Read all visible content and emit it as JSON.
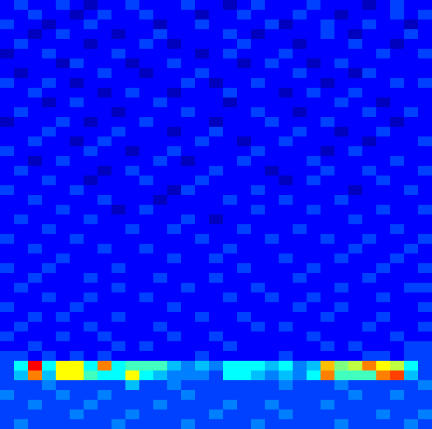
{
  "chart_data": {
    "type": "heatmap",
    "tick_labels": false,
    "zlim": [
      0,
      16
    ],
    "cells": [
      [
        2,
        3,
        2,
        2,
        3,
        2,
        1,
        2,
        2,
        3,
        2,
        2,
        2,
        3,
        2,
        2,
        1,
        2,
        3,
        2,
        2,
        2,
        3,
        2,
        2,
        2,
        1,
        2,
        3,
        2,
        2
      ],
      [
        2,
        2,
        3,
        2,
        2,
        1,
        2,
        3,
        2,
        2,
        3,
        2,
        2,
        2,
        1,
        2,
        2,
        3,
        2,
        2,
        2,
        3,
        2,
        2,
        1,
        2,
        2,
        2,
        3,
        2,
        3
      ],
      [
        3,
        2,
        2,
        1,
        2,
        2,
        3,
        2,
        2,
        2,
        2,
        1,
        2,
        2,
        3,
        2,
        2,
        2,
        2,
        3,
        1,
        2,
        2,
        3,
        2,
        2,
        3,
        2,
        2,
        1,
        2
      ],
      [
        2,
        2,
        1,
        2,
        3,
        2,
        2,
        2,
        1,
        2,
        2,
        3,
        2,
        2,
        2,
        2,
        3,
        2,
        1,
        2,
        2,
        2,
        2,
        3,
        2,
        1,
        2,
        2,
        2,
        3,
        2
      ],
      [
        2,
        3,
        2,
        2,
        2,
        2,
        1,
        2,
        2,
        2,
        3,
        2,
        1,
        2,
        2,
        2,
        2,
        3,
        2,
        2,
        2,
        1,
        2,
        2,
        2,
        3,
        2,
        2,
        1,
        2,
        2
      ],
      [
        1,
        2,
        2,
        3,
        2,
        2,
        2,
        2,
        3,
        2,
        2,
        2,
        2,
        2,
        1,
        2,
        3,
        2,
        2,
        2,
        3,
        2,
        2,
        2,
        2,
        2,
        2,
        3,
        2,
        2,
        3
      ],
      [
        2,
        2,
        2,
        2,
        1,
        3,
        2,
        2,
        2,
        1,
        2,
        2,
        3,
        2,
        2,
        2,
        2,
        1,
        2,
        3,
        2,
        2,
        1,
        2,
        3,
        2,
        2,
        2,
        2,
        2,
        2
      ],
      [
        2,
        1,
        2,
        2,
        2,
        2,
        2,
        3,
        2,
        2,
        1,
        2,
        2,
        2,
        3,
        2,
        2,
        2,
        2,
        2,
        2,
        3,
        2,
        2,
        2,
        1,
        3,
        2,
        2,
        2,
        2
      ],
      [
        3,
        2,
        2,
        3,
        2,
        1,
        2,
        2,
        2,
        2,
        2,
        2,
        2,
        3,
        2,
        1,
        2,
        2,
        3,
        2,
        2,
        2,
        2,
        1,
        2,
        2,
        2,
        2,
        3,
        2,
        3
      ],
      [
        2,
        2,
        3,
        2,
        2,
        2,
        2,
        1,
        2,
        3,
        2,
        2,
        1,
        2,
        2,
        2,
        3,
        2,
        2,
        2,
        1,
        2,
        3,
        2,
        2,
        3,
        2,
        2,
        2,
        2,
        2
      ],
      [
        2,
        2,
        2,
        1,
        2,
        3,
        2,
        2,
        2,
        2,
        2,
        3,
        2,
        2,
        2,
        2,
        1,
        2,
        2,
        2,
        2,
        2,
        2,
        2,
        3,
        2,
        2,
        1,
        2,
        2,
        2
      ],
      [
        2,
        3,
        2,
        2,
        2,
        2,
        2,
        2,
        1,
        2,
        2,
        2,
        2,
        3,
        2,
        2,
        2,
        2,
        3,
        2,
        2,
        1,
        2,
        2,
        2,
        2,
        3,
        2,
        2,
        3,
        2
      ],
      [
        1,
        2,
        2,
        2,
        3,
        2,
        1,
        2,
        2,
        2,
        3,
        2,
        2,
        2,
        2,
        1,
        2,
        2,
        2,
        3,
        2,
        2,
        2,
        3,
        2,
        2,
        2,
        2,
        1,
        2,
        2
      ],
      [
        2,
        2,
        2,
        3,
        2,
        2,
        2,
        2,
        3,
        2,
        2,
        2,
        1,
        2,
        2,
        3,
        2,
        2,
        2,
        2,
        2,
        3,
        2,
        2,
        1,
        2,
        2,
        3,
        2,
        2,
        2
      ],
      [
        2,
        2,
        3,
        2,
        2,
        1,
        2,
        3,
        2,
        2,
        2,
        2,
        2,
        2,
        3,
        2,
        2,
        1,
        2,
        2,
        3,
        2,
        2,
        2,
        2,
        2,
        1,
        2,
        2,
        2,
        3
      ],
      [
        3,
        2,
        2,
        2,
        2,
        2,
        3,
        2,
        2,
        1,
        2,
        2,
        3,
        2,
        2,
        2,
        2,
        2,
        3,
        2,
        2,
        2,
        2,
        1,
        2,
        3,
        2,
        2,
        2,
        2,
        2
      ],
      [
        2,
        2,
        1,
        2,
        3,
        2,
        2,
        2,
        2,
        2,
        2,
        3,
        2,
        1,
        2,
        2,
        2,
        3,
        2,
        2,
        2,
        2,
        3,
        2,
        2,
        2,
        2,
        2,
        3,
        2,
        2
      ],
      [
        2,
        3,
        2,
        2,
        2,
        2,
        2,
        1,
        2,
        3,
        2,
        2,
        2,
        2,
        2,
        3,
        2,
        2,
        2,
        1,
        2,
        2,
        2,
        3,
        2,
        2,
        3,
        2,
        2,
        2,
        3
      ],
      [
        2,
        2,
        2,
        3,
        2,
        2,
        1,
        2,
        2,
        2,
        3,
        2,
        2,
        2,
        3,
        2,
        2,
        2,
        2,
        2,
        1,
        2,
        3,
        2,
        2,
        2,
        2,
        3,
        2,
        2,
        2
      ],
      [
        3,
        2,
        2,
        2,
        2,
        3,
        2,
        2,
        2,
        2,
        2,
        2,
        1,
        3,
        2,
        2,
        2,
        2,
        3,
        2,
        2,
        2,
        2,
        2,
        2,
        1,
        2,
        2,
        2,
        3,
        2
      ],
      [
        2,
        2,
        3,
        2,
        2,
        2,
        2,
        3,
        2,
        2,
        2,
        1,
        2,
        2,
        2,
        2,
        3,
        2,
        2,
        2,
        3,
        2,
        2,
        2,
        3,
        2,
        2,
        2,
        2,
        2,
        2
      ],
      [
        2,
        2,
        2,
        2,
        3,
        2,
        2,
        2,
        1,
        2,
        3,
        2,
        2,
        2,
        2,
        2,
        2,
        2,
        3,
        2,
        2,
        2,
        3,
        2,
        2,
        2,
        2,
        3,
        2,
        2,
        3
      ],
      [
        2,
        3,
        2,
        2,
        2,
        2,
        3,
        2,
        2,
        2,
        2,
        2,
        2,
        3,
        2,
        1,
        2,
        2,
        2,
        2,
        2,
        2,
        2,
        2,
        2,
        3,
        2,
        2,
        2,
        2,
        2
      ],
      [
        2,
        2,
        2,
        3,
        2,
        2,
        2,
        2,
        2,
        3,
        2,
        2,
        3,
        2,
        2,
        2,
        2,
        3,
        2,
        2,
        2,
        3,
        2,
        2,
        2,
        2,
        2,
        2,
        3,
        2,
        2
      ],
      [
        3,
        2,
        2,
        2,
        2,
        3,
        2,
        2,
        2,
        2,
        2,
        2,
        2,
        2,
        3,
        2,
        2,
        2,
        2,
        3,
        2,
        2,
        2,
        3,
        2,
        2,
        3,
        2,
        2,
        2,
        3
      ],
      [
        2,
        2,
        3,
        2,
        2,
        2,
        2,
        3,
        2,
        2,
        3,
        2,
        2,
        2,
        2,
        2,
        3,
        2,
        2,
        2,
        2,
        2,
        2,
        2,
        2,
        3,
        2,
        2,
        2,
        3,
        2
      ],
      [
        2,
        2,
        2,
        2,
        3,
        2,
        2,
        2,
        2,
        2,
        2,
        2,
        3,
        2,
        2,
        3,
        2,
        2,
        2,
        2,
        3,
        2,
        2,
        2,
        3,
        2,
        2,
        2,
        3,
        2,
        2
      ],
      [
        3,
        2,
        2,
        3,
        2,
        2,
        2,
        2,
        3,
        2,
        2,
        2,
        2,
        2,
        2,
        2,
        2,
        3,
        2,
        2,
        2,
        2,
        3,
        2,
        2,
        2,
        2,
        3,
        2,
        2,
        3
      ],
      [
        2,
        2,
        3,
        2,
        2,
        2,
        3,
        2,
        2,
        2,
        2,
        3,
        2,
        2,
        2,
        3,
        2,
        2,
        2,
        2,
        2,
        3,
        2,
        2,
        2,
        2,
        3,
        2,
        2,
        2,
        2
      ],
      [
        2,
        3,
        2,
        2,
        2,
        2,
        2,
        2,
        3,
        2,
        2,
        2,
        2,
        3,
        2,
        2,
        2,
        2,
        3,
        2,
        2,
        2,
        2,
        2,
        3,
        2,
        2,
        2,
        2,
        3,
        3
      ],
      [
        2,
        2,
        2,
        3,
        2,
        2,
        3,
        2,
        2,
        2,
        3,
        2,
        2,
        2,
        2,
        2,
        3,
        2,
        2,
        3,
        2,
        2,
        3,
        2,
        2,
        2,
        2,
        3,
        2,
        2,
        2
      ],
      [
        3,
        2,
        2,
        2,
        2,
        3,
        2,
        2,
        2,
        2,
        2,
        2,
        3,
        2,
        2,
        2,
        2,
        2,
        2,
        2,
        2,
        3,
        2,
        2,
        3,
        2,
        2,
        2,
        2,
        2,
        3
      ],
      [
        2,
        2,
        3,
        2,
        3,
        2,
        2,
        2,
        3,
        2,
        2,
        2,
        2,
        2,
        3,
        2,
        2,
        3,
        2,
        2,
        2,
        2,
        2,
        3,
        2,
        2,
        2,
        3,
        2,
        2,
        2
      ],
      [
        2,
        3,
        2,
        2,
        2,
        2,
        3,
        2,
        2,
        2,
        2,
        3,
        2,
        2,
        2,
        2,
        2,
        2,
        3,
        2,
        3,
        2,
        2,
        2,
        2,
        2,
        3,
        2,
        2,
        2,
        3
      ],
      [
        3,
        2,
        2,
        2,
        3,
        2,
        2,
        3,
        2,
        2,
        2,
        2,
        3,
        2,
        2,
        3,
        2,
        2,
        2,
        2,
        2,
        2,
        3,
        2,
        2,
        2,
        2,
        2,
        3,
        2,
        2
      ],
      [
        2,
        2,
        3,
        2,
        2,
        2,
        2,
        2,
        3,
        2,
        3,
        2,
        2,
        2,
        2,
        2,
        3,
        2,
        2,
        2,
        2,
        2,
        2,
        3,
        2,
        3,
        2,
        2,
        2,
        3,
        3
      ],
      [
        3,
        3,
        2,
        3,
        2,
        3,
        2,
        3,
        2,
        2,
        2,
        2,
        2,
        2,
        3,
        2,
        2,
        2,
        2,
        2,
        3,
        2,
        2,
        2,
        2,
        2,
        3,
        3,
        2,
        3,
        3
      ],
      [
        3,
        6,
        14,
        6,
        10,
        10,
        6,
        12,
        6,
        7,
        7,
        7,
        5,
        4,
        5,
        4,
        6,
        6,
        6,
        5,
        6,
        4,
        5,
        11,
        8,
        9,
        12,
        10,
        9,
        6,
        3
      ],
      [
        3,
        5,
        12,
        5,
        10,
        10,
        7,
        6,
        6,
        10,
        6,
        5,
        4,
        4,
        4,
        3,
        6,
        6,
        5,
        4,
        5,
        4,
        6,
        12,
        7,
        7,
        7,
        12,
        13,
        5,
        3
      ],
      [
        3,
        3,
        3,
        4,
        3,
        3,
        3,
        3,
        3,
        5,
        3,
        3,
        4,
        3,
        3,
        3,
        3,
        3,
        3,
        3,
        4,
        3,
        3,
        3,
        4,
        3,
        3,
        3,
        3,
        3,
        4
      ],
      [
        4,
        3,
        3,
        3,
        4,
        3,
        3,
        4,
        3,
        3,
        3,
        3,
        3,
        4,
        3,
        3,
        3,
        3,
        3,
        3,
        3,
        3,
        3,
        3,
        3,
        4,
        3,
        3,
        4,
        3,
        3
      ],
      [
        3,
        3,
        4,
        3,
        3,
        3,
        4,
        3,
        3,
        3,
        3,
        4,
        3,
        3,
        3,
        3,
        4,
        3,
        3,
        4,
        3,
        3,
        3,
        4,
        3,
        3,
        3,
        3,
        3,
        3,
        3
      ],
      [
        3,
        3,
        3,
        3,
        3,
        4,
        3,
        3,
        3,
        4,
        3,
        3,
        3,
        3,
        3,
        4,
        3,
        3,
        3,
        3,
        4,
        3,
        3,
        3,
        3,
        3,
        3,
        4,
        3,
        3,
        4
      ],
      [
        3,
        4,
        3,
        3,
        3,
        3,
        3,
        3,
        4,
        3,
        3,
        3,
        3,
        4,
        3,
        3,
        3,
        3,
        4,
        3,
        3,
        3,
        3,
        3,
        4,
        3,
        3,
        3,
        3,
        4,
        3
      ]
    ]
  }
}
